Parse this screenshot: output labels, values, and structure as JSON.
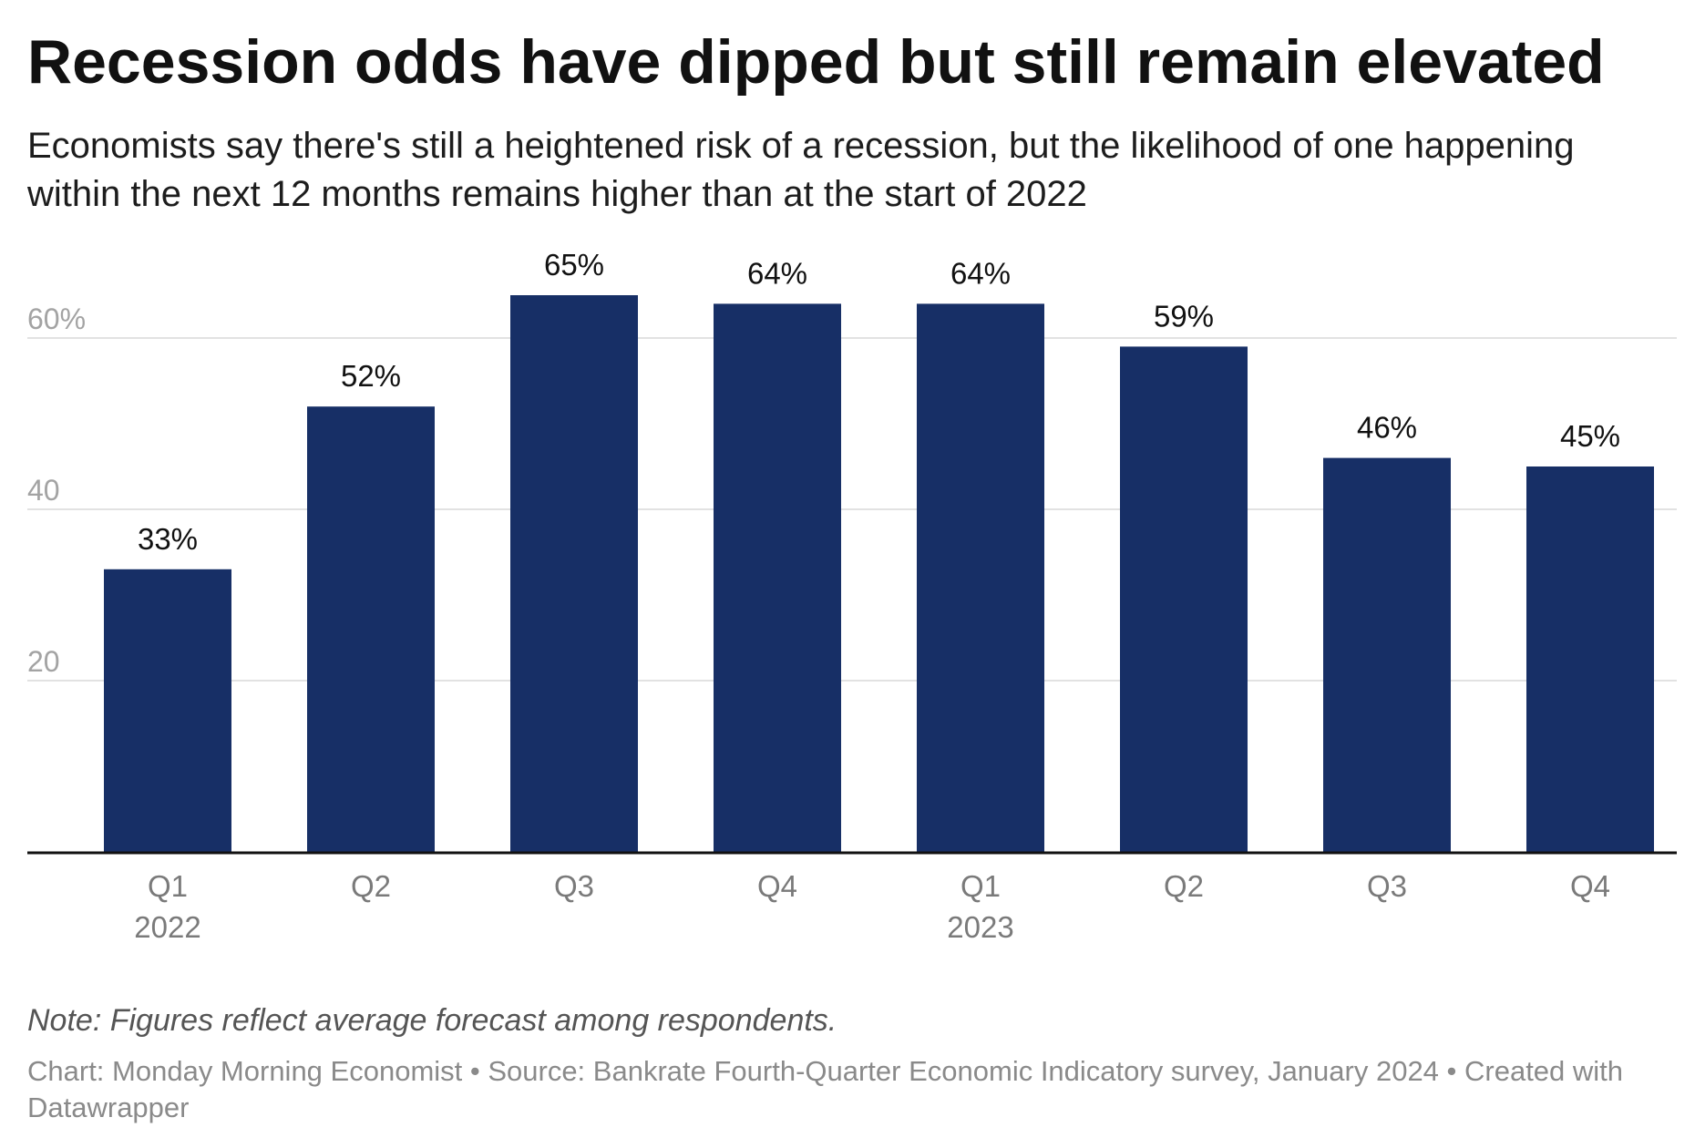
{
  "header": {
    "title": "Recession odds have dipped but still remain elevated",
    "subtitle": "Economists say there's still a heightened risk of a recession, but the likelihood of one happening within the next 12 months remains higher than at the start of 2022"
  },
  "chart_data": {
    "type": "bar",
    "categories": [
      "Q1",
      "Q2",
      "Q3",
      "Q4",
      "Q1",
      "Q2",
      "Q3",
      "Q4"
    ],
    "year_labels": [
      "2022",
      "",
      "",
      "",
      "2023",
      "",
      "",
      ""
    ],
    "values": [
      33,
      52,
      65,
      64,
      64,
      59,
      46,
      45
    ],
    "value_labels": [
      "33%",
      "52%",
      "65%",
      "64%",
      "64%",
      "59%",
      "46%",
      "45%"
    ],
    "y_ticks": [
      20,
      40,
      60
    ],
    "y_tick_labels": [
      "20",
      "40",
      "60%"
    ],
    "ylim": [
      0,
      70
    ],
    "grid": true,
    "bar_color": "#172f66",
    "xlabel": "",
    "ylabel": ""
  },
  "footer": {
    "note": "Note: Figures reflect average forecast among respondents.",
    "credit": "Chart: Monday Morning Economist • Source: Bankrate Fourth-Quarter Economic Indicatory survey, January 2024 • Created with Datawrapper"
  }
}
